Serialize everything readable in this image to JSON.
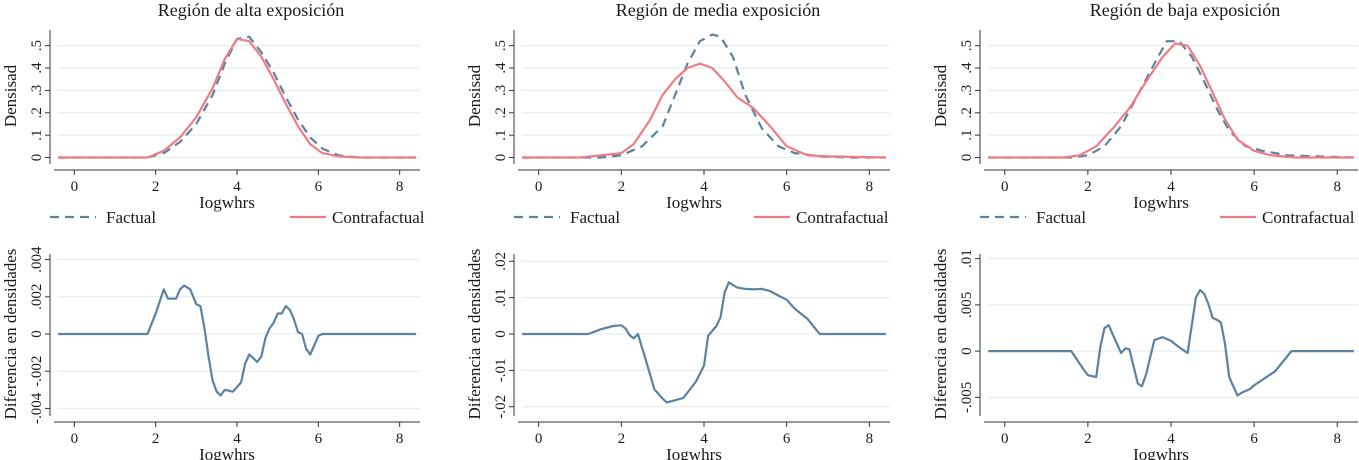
{
  "colors": {
    "factual": "#5b82a5",
    "contrafactual": "#f07c82",
    "diff": "#5b82a5",
    "axis": "#333333"
  },
  "chart_data": [
    {
      "type": "line",
      "title": "Región de alta exposición",
      "xlabel": "Iogwhrs",
      "ylabel": "Densisad",
      "xlim": [
        -0.5,
        8.5
      ],
      "ylim": [
        -0.02,
        0.57
      ],
      "xticks": [
        0,
        2,
        4,
        6,
        8
      ],
      "yticks": [
        "0",
        ".1",
        ".2",
        ".3",
        ".4",
        ".5"
      ],
      "legend_position": "bottom",
      "series": [
        {
          "name": "Factual",
          "style": "dashed",
          "x": [
            -0.4,
            1.8,
            2.2,
            2.6,
            3.0,
            3.4,
            3.7,
            4.0,
            4.3,
            4.6,
            4.9,
            5.2,
            5.5,
            5.8,
            6.1,
            6.5,
            7.0,
            8.4
          ],
          "y": [
            0,
            0,
            0.02,
            0.07,
            0.15,
            0.28,
            0.42,
            0.53,
            0.54,
            0.47,
            0.38,
            0.27,
            0.17,
            0.09,
            0.04,
            0.01,
            0,
            0
          ]
        },
        {
          "name": "Contrafactual",
          "style": "solid",
          "x": [
            -0.4,
            1.8,
            2.2,
            2.6,
            3.0,
            3.4,
            3.7,
            4.0,
            4.3,
            4.6,
            4.9,
            5.2,
            5.5,
            5.8,
            6.1,
            6.5,
            7.0,
            8.4
          ],
          "y": [
            0,
            0,
            0.03,
            0.09,
            0.18,
            0.31,
            0.44,
            0.53,
            0.52,
            0.45,
            0.35,
            0.24,
            0.14,
            0.06,
            0.02,
            0.005,
            0,
            0
          ]
        }
      ]
    },
    {
      "type": "line",
      "title": "Región de media exposición",
      "xlabel": "Iogwhrs",
      "ylabel": "Densisad",
      "xlim": [
        -0.5,
        8.5
      ],
      "ylim": [
        -0.02,
        0.57
      ],
      "xticks": [
        0,
        2,
        4,
        6,
        8
      ],
      "yticks": [
        "0",
        ".1",
        ".2",
        ".3",
        ".4",
        ".5"
      ],
      "legend_position": "bottom",
      "series": [
        {
          "name": "Factual",
          "style": "dashed",
          "x": [
            -0.4,
            1.5,
            2.0,
            2.5,
            3.0,
            3.3,
            3.6,
            3.9,
            4.2,
            4.4,
            4.7,
            5.0,
            5.4,
            5.8,
            6.2,
            6.8,
            7.5,
            8.4
          ],
          "y": [
            0,
            0,
            0.01,
            0.05,
            0.14,
            0.28,
            0.42,
            0.52,
            0.55,
            0.54,
            0.45,
            0.28,
            0.13,
            0.05,
            0.02,
            0.005,
            0,
            0
          ]
        },
        {
          "name": "Contrafactual",
          "style": "solid",
          "x": [
            -0.4,
            1.0,
            1.5,
            2.0,
            2.3,
            2.7,
            3.0,
            3.3,
            3.6,
            3.9,
            4.2,
            4.5,
            4.8,
            5.2,
            5.6,
            6.0,
            6.5,
            7.0,
            8.4
          ],
          "y": [
            0,
            0,
            0.01,
            0.02,
            0.06,
            0.17,
            0.28,
            0.35,
            0.4,
            0.42,
            0.4,
            0.34,
            0.27,
            0.22,
            0.14,
            0.05,
            0.01,
            0.005,
            0
          ]
        }
      ]
    },
    {
      "type": "line",
      "title": "Región de baja exposición",
      "xlabel": "Iogwhrs",
      "ylabel": "Densisad",
      "xlim": [
        -0.5,
        8.5
      ],
      "ylim": [
        -0.02,
        0.57
      ],
      "xticks": [
        0,
        2,
        4,
        6,
        8
      ],
      "yticks": [
        "0",
        ".1",
        ".2",
        ".3",
        ".4",
        ".5"
      ],
      "legend_position": "bottom",
      "series": [
        {
          "name": "Factual",
          "style": "dashed",
          "x": [
            -0.4,
            1.6,
            2.0,
            2.4,
            2.8,
            3.2,
            3.6,
            3.9,
            4.2,
            4.5,
            4.8,
            5.1,
            5.4,
            5.8,
            6.2,
            6.8,
            7.5,
            8.4
          ],
          "y": [
            0,
            0,
            0.01,
            0.05,
            0.14,
            0.28,
            0.42,
            0.52,
            0.52,
            0.45,
            0.34,
            0.22,
            0.12,
            0.05,
            0.03,
            0.01,
            0.005,
            0
          ]
        },
        {
          "name": "Contrafactual",
          "style": "solid",
          "x": [
            -0.4,
            1.4,
            1.8,
            2.2,
            2.6,
            3.0,
            3.4,
            3.8,
            4.1,
            4.4,
            4.7,
            5.0,
            5.3,
            5.6,
            6.0,
            6.4,
            7.0,
            8.4
          ],
          "y": [
            0,
            0,
            0.01,
            0.05,
            0.13,
            0.22,
            0.34,
            0.45,
            0.51,
            0.5,
            0.41,
            0.29,
            0.17,
            0.08,
            0.03,
            0.01,
            0,
            0
          ]
        }
      ]
    },
    {
      "type": "line",
      "title": "",
      "xlabel": "Iogwhrs",
      "ylabel": "Diferencia en densidades",
      "xlim": [
        -0.5,
        8.5
      ],
      "ylim": [
        -0.0043,
        0.0043
      ],
      "xticks": [
        0,
        2,
        4,
        6,
        8
      ],
      "ytick_values": [
        -0.004,
        -0.002,
        0,
        0.002,
        0.004
      ],
      "ytick_labels": [
        "-.004",
        "-.002",
        "0",
        ".002",
        ".004"
      ],
      "series": [
        {
          "style": "solid",
          "x": [
            -0.4,
            1.8,
            2.0,
            2.2,
            2.3,
            2.5,
            2.6,
            2.7,
            2.85,
            3.0,
            3.1,
            3.2,
            3.3,
            3.4,
            3.5,
            3.6,
            3.7,
            3.9,
            4.1,
            4.2,
            4.3,
            4.4,
            4.5,
            4.6,
            4.7,
            4.8,
            4.9,
            5.0,
            5.1,
            5.2,
            5.3,
            5.4,
            5.5,
            5.6,
            5.7,
            5.8,
            5.9,
            6.0,
            6.1,
            6.3,
            8.4
          ],
          "y": [
            0,
            0,
            0.0011,
            0.0024,
            0.0019,
            0.0019,
            0.0024,
            0.0026,
            0.0024,
            0.0016,
            0.0015,
            0.0003,
            -0.0012,
            -0.0025,
            -0.0031,
            -0.0033,
            -0.003,
            -0.0031,
            -0.0026,
            -0.0016,
            -0.0011,
            -0.0013,
            -0.0015,
            -0.0012,
            -0.0002,
            0.0003,
            0.0006,
            0.0011,
            0.0011,
            0.0015,
            0.0013,
            0.0008,
            0.0001,
            0.0,
            -0.0008,
            -0.0011,
            -0.0006,
            -0.0001,
            0.0,
            0,
            0
          ]
        }
      ]
    },
    {
      "type": "line",
      "title": "",
      "xlabel": "Iogwhrs",
      "ylabel": "Diferencia en densidades",
      "xlim": [
        -0.5,
        8.5
      ],
      "ylim": [
        -0.022,
        0.022
      ],
      "xticks": [
        0,
        2,
        4,
        6,
        8
      ],
      "ytick_values": [
        -0.02,
        -0.01,
        0,
        0.01,
        0.02
      ],
      "ytick_labels": [
        "-.02",
        "-.01",
        "0",
        ".01",
        ".02"
      ],
      "series": [
        {
          "style": "solid",
          "x": [
            -0.4,
            1.2,
            1.5,
            1.8,
            2.0,
            2.1,
            2.2,
            2.3,
            2.4,
            2.6,
            2.8,
            3.0,
            3.1,
            3.3,
            3.5,
            3.8,
            4.0,
            4.1,
            4.3,
            4.4,
            4.5,
            4.6,
            4.8,
            5.0,
            5.2,
            5.4,
            5.6,
            5.8,
            6.0,
            6.2,
            6.5,
            6.8,
            8.4
          ],
          "y": [
            0,
            0,
            0.0013,
            0.0022,
            0.0024,
            0.0015,
            -0.0003,
            -0.0012,
            0.0,
            -0.0074,
            -0.0152,
            -0.0178,
            -0.0188,
            -0.0182,
            -0.0176,
            -0.0132,
            -0.0087,
            -0.0005,
            0.0022,
            0.0046,
            0.0115,
            0.0142,
            0.0128,
            0.0124,
            0.0123,
            0.0124,
            0.0118,
            0.0106,
            0.0094,
            0.0069,
            0.0042,
            0.0,
            0
          ]
        }
      ]
    },
    {
      "type": "line",
      "title": "",
      "xlabel": "Iogwhrs",
      "ylabel": "Diferencia en densidades",
      "xlim": [
        -0.5,
        8.5
      ],
      "ylim": [
        -0.0068,
        0.0105
      ],
      "xticks": [
        0,
        2,
        4,
        6,
        8
      ],
      "ytick_values": [
        -0.005,
        0,
        0.005,
        0.01
      ],
      "ytick_labels": [
        "-.005",
        "0",
        ".005",
        ".01"
      ],
      "series": [
        {
          "style": "solid",
          "x": [
            -0.4,
            1.6,
            1.9,
            2.0,
            2.2,
            2.3,
            2.4,
            2.5,
            2.6,
            2.8,
            2.9,
            3.0,
            3.2,
            3.3,
            3.4,
            3.6,
            3.8,
            4.0,
            4.2,
            4.4,
            4.5,
            4.6,
            4.7,
            4.8,
            4.9,
            5.0,
            5.1,
            5.2,
            5.3,
            5.4,
            5.6,
            5.7,
            5.9,
            6.0,
            6.2,
            6.5,
            6.9,
            8.4
          ],
          "y": [
            0,
            0,
            -0.002,
            -0.0026,
            -0.0028,
            0.0005,
            0.0025,
            0.0028,
            0.0018,
            -0.0002,
            0.0003,
            0.0002,
            -0.0035,
            -0.0038,
            -0.0025,
            0.0012,
            0.0015,
            0.0011,
            0.0004,
            -0.0002,
            0.0028,
            0.0058,
            0.0066,
            0.0062,
            0.0051,
            0.0036,
            0.0034,
            0.0031,
            0.0008,
            -0.0028,
            -0.0048,
            -0.0045,
            -0.0041,
            -0.0037,
            -0.0031,
            -0.0022,
            0.0,
            0
          ]
        }
      ]
    }
  ]
}
